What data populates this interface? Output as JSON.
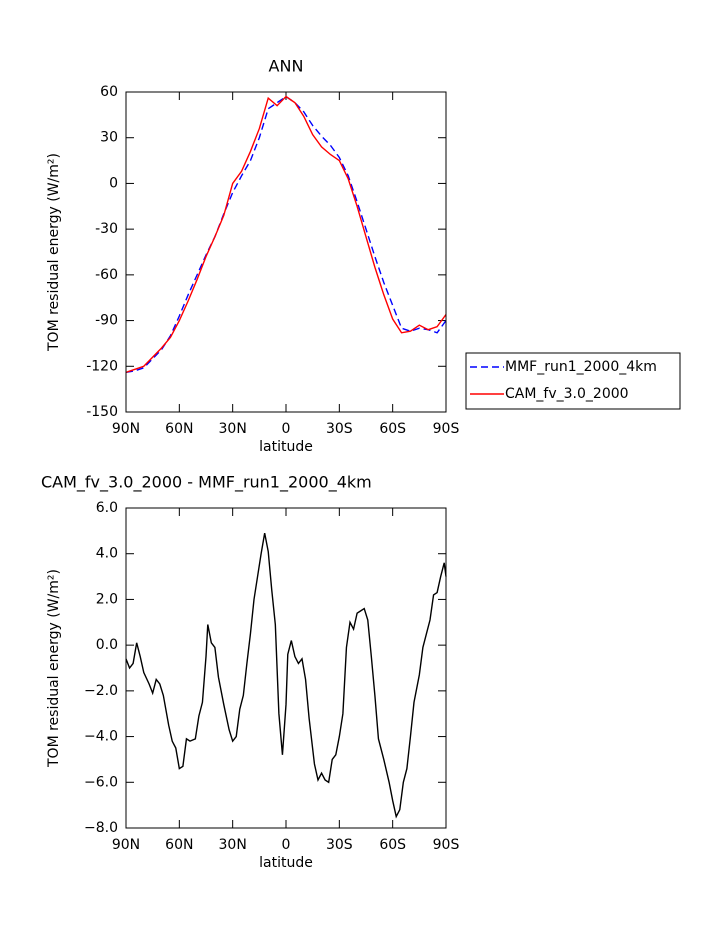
{
  "chart_data": [
    {
      "type": "line",
      "title": "ANN",
      "x_label": "latitude",
      "y_label": "TOM residual energy (W/m²)",
      "xlim": [
        90,
        -90
      ],
      "ylim": [
        -150,
        60
      ],
      "xticks": [
        {
          "value": 90,
          "label": "90N"
        },
        {
          "value": 60,
          "label": "60N"
        },
        {
          "value": 30,
          "label": "30N"
        },
        0,
        {
          "value": -30,
          "label": "30S"
        },
        {
          "value": -60,
          "label": "60S"
        },
        {
          "value": -90,
          "label": "90S"
        }
      ],
      "yticks": [
        -150,
        -120,
        -90,
        -60,
        -30,
        0,
        30,
        60
      ],
      "x": [
        90,
        85,
        80,
        75,
        70,
        65,
        60,
        55,
        50,
        45,
        40,
        35,
        30,
        25,
        20,
        15,
        10,
        5,
        0,
        -5,
        -10,
        -15,
        -20,
        -25,
        -30,
        -35,
        -40,
        -45,
        -50,
        -55,
        -60,
        -65,
        -70,
        -75,
        -80,
        -85,
        -90
      ],
      "series": [
        {
          "name": "MMF_run1_2000_4km",
          "color": "#0000ff",
          "style": "dashed",
          "values": [
            -124,
            -123,
            -121,
            -115,
            -109,
            -100,
            -87,
            -73,
            -60,
            -47,
            -35,
            -20,
            -6,
            5,
            15,
            30,
            49,
            53,
            57,
            53,
            47,
            38,
            31,
            25,
            17,
            5,
            -12,
            -30,
            -48,
            -65,
            -80,
            -95,
            -97,
            -95,
            -96,
            -98,
            -90
          ]
        },
        {
          "name": "CAM_fv_3.0_2000",
          "color": "#ff0000",
          "style": "solid",
          "values": [
            -124,
            -122,
            -120,
            -114,
            -108,
            -101,
            -90,
            -77,
            -63,
            -48,
            -35,
            -21,
            0,
            8,
            21,
            36,
            56,
            51,
            57,
            53,
            44,
            32,
            24,
            19,
            15,
            3,
            -15,
            -35,
            -55,
            -73,
            -89,
            -98,
            -97,
            -93,
            -96,
            -94,
            -86
          ]
        }
      ]
    },
    {
      "type": "line",
      "title": "CAM_fv_3.0_2000 - MMF_run1_2000_4km",
      "x_label": "latitude",
      "y_label": "TOM residual energy (W/m²)",
      "xlim": [
        90,
        -90
      ],
      "ylim": [
        -8,
        6
      ],
      "xticks": [
        {
          "value": 90,
          "label": "90N"
        },
        {
          "value": 60,
          "label": "60N"
        },
        {
          "value": 30,
          "label": "30N"
        },
        0,
        {
          "value": -30,
          "label": "30S"
        },
        {
          "value": -60,
          "label": "60S"
        },
        {
          "value": -90,
          "label": "90S"
        }
      ],
      "yticks": [
        {
          "value": -8,
          "label": "−8.0"
        },
        {
          "value": -6,
          "label": "−6.0"
        },
        {
          "value": -4,
          "label": "−4.0"
        },
        {
          "value": -2,
          "label": "−2.0"
        },
        {
          "value": 0,
          "label": "0.0"
        },
        {
          "value": 2,
          "label": "2.0"
        },
        {
          "value": 4,
          "label": "4.0"
        },
        {
          "value": 6,
          "label": "6.0"
        }
      ],
      "x": [
        90,
        88,
        86,
        84,
        82,
        80,
        77,
        75,
        73,
        71,
        69,
        66,
        64,
        62,
        60,
        58,
        56,
        54,
        51,
        49,
        47,
        45,
        44,
        42,
        40,
        38,
        35,
        32,
        30,
        28,
        26,
        24,
        22,
        20,
        18,
        16,
        14,
        12,
        10,
        8,
        6,
        4,
        2,
        0,
        -1,
        -3,
        -5,
        -7,
        -9,
        -11,
        -13,
        -16,
        -18,
        -20,
        -22,
        -24,
        -26,
        -28,
        -30,
        -32,
        -34,
        -36,
        -38,
        -40,
        -42,
        -44,
        -46,
        -48,
        -50,
        -52,
        -55,
        -58,
        -60,
        -62,
        -64,
        -66,
        -68,
        -70,
        -72,
        -75,
        -77,
        -79,
        -81,
        -83,
        -85,
        -87,
        -89,
        -90
      ],
      "color": "#000000",
      "values": [
        -0.6,
        -1.0,
        -0.8,
        0.1,
        -0.5,
        -1.2,
        -1.7,
        -2.1,
        -1.5,
        -1.7,
        -2.2,
        -3.5,
        -4.2,
        -4.5,
        -5.4,
        -5.3,
        -4.1,
        -4.2,
        -4.1,
        -3.1,
        -2.5,
        -0.5,
        0.9,
        0.1,
        -0.1,
        -1.4,
        -2.6,
        -3.7,
        -4.2,
        -4.0,
        -2.8,
        -2.2,
        -0.8,
        0.5,
        2.0,
        3.0,
        4.0,
        4.9,
        4.1,
        2.4,
        0.9,
        -3.0,
        -4.8,
        -2.6,
        -0.4,
        0.2,
        -0.5,
        -0.8,
        -0.6,
        -1.5,
        -3.2,
        -5.2,
        -5.9,
        -5.6,
        -5.9,
        -6.0,
        -5.0,
        -4.8,
        -4.0,
        -3.0,
        -0.1,
        1.0,
        0.7,
        1.4,
        1.5,
        1.6,
        1.1,
        -0.5,
        -2.2,
        -4.1,
        -5.0,
        -6.0,
        -6.8,
        -7.5,
        -7.2,
        -6.0,
        -5.4,
        -4.0,
        -2.5,
        -1.3,
        -0.1,
        0.5,
        1.1,
        2.2,
        2.3,
        3.0,
        3.6,
        3.0
      ]
    }
  ]
}
